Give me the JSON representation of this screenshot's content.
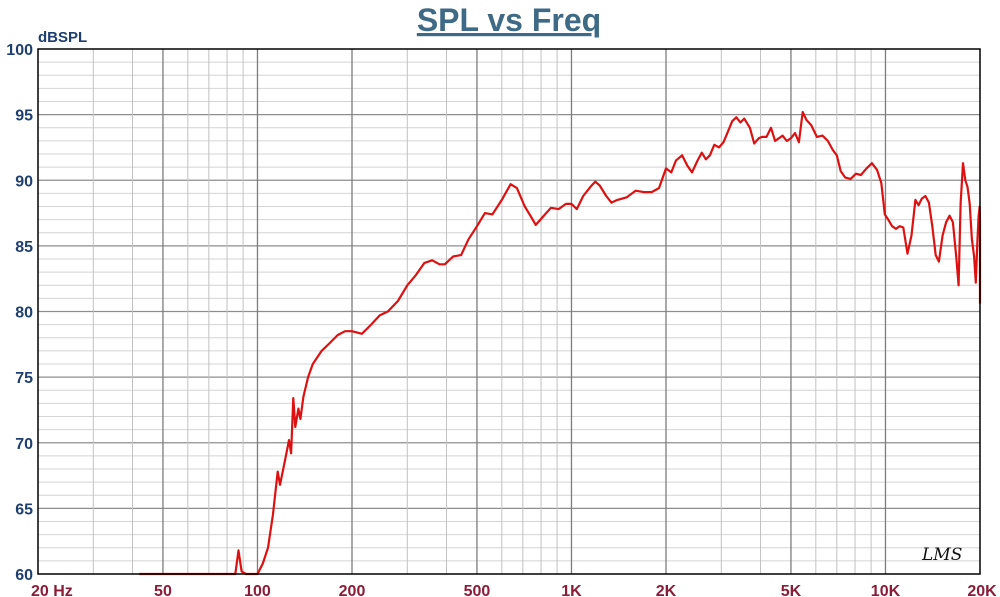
{
  "chart_data": {
    "type": "line",
    "title": "SPL vs Freq",
    "ylabel": "dBSPL",
    "xlabel": "",
    "xscale": "log",
    "xlim": [
      20,
      20000
    ],
    "ylim": [
      60,
      100
    ],
    "grid": true,
    "yticks": [
      {
        "value": 60,
        "label": "60"
      },
      {
        "value": 65,
        "label": "65"
      },
      {
        "value": 70,
        "label": "70"
      },
      {
        "value": 75,
        "label": "75"
      },
      {
        "value": 80,
        "label": "80"
      },
      {
        "value": 85,
        "label": "85"
      },
      {
        "value": 90,
        "label": "90"
      },
      {
        "value": 95,
        "label": "95"
      },
      {
        "value": 100,
        "label": "100"
      }
    ],
    "xticks": [
      {
        "value": 20,
        "label": "20  Hz"
      },
      {
        "value": 50,
        "label": "50"
      },
      {
        "value": 100,
        "label": "100"
      },
      {
        "value": 200,
        "label": "200"
      },
      {
        "value": 500,
        "label": "500"
      },
      {
        "value": 1000,
        "label": "1K"
      },
      {
        "value": 2000,
        "label": "2K"
      },
      {
        "value": 5000,
        "label": "5K"
      },
      {
        "value": 10000,
        "label": "10K"
      },
      {
        "value": 20000,
        "label": "20K"
      }
    ],
    "series": [
      {
        "color": "#dd1111",
        "points": [
          [
            42,
            60
          ],
          [
            80,
            60
          ],
          [
            85,
            60
          ],
          [
            87,
            61.8
          ],
          [
            89,
            60.2
          ],
          [
            92,
            60
          ],
          [
            100,
            60
          ],
          [
            104,
            60.8
          ],
          [
            108,
            62
          ],
          [
            112,
            64.5
          ],
          [
            116,
            67.8
          ],
          [
            118,
            66.8
          ],
          [
            122,
            68.5
          ],
          [
            126,
            70.2
          ],
          [
            128,
            69.2
          ],
          [
            130,
            73.4
          ],
          [
            132,
            71.2
          ],
          [
            135,
            72.6
          ],
          [
            137,
            71.8
          ],
          [
            140,
            73.5
          ],
          [
            145,
            75
          ],
          [
            150,
            76
          ],
          [
            160,
            77
          ],
          [
            170,
            77.6
          ],
          [
            180,
            78.2
          ],
          [
            190,
            78.5
          ],
          [
            200,
            78.5
          ],
          [
            215,
            78.3
          ],
          [
            230,
            79
          ],
          [
            245,
            79.7
          ],
          [
            260,
            80
          ],
          [
            280,
            80.8
          ],
          [
            300,
            82
          ],
          [
            320,
            82.8
          ],
          [
            340,
            83.7
          ],
          [
            360,
            83.9
          ],
          [
            380,
            83.6
          ],
          [
            395,
            83.6
          ],
          [
            420,
            84.2
          ],
          [
            445,
            84.3
          ],
          [
            470,
            85.5
          ],
          [
            500,
            86.5
          ],
          [
            530,
            87.5
          ],
          [
            560,
            87.4
          ],
          [
            600,
            88.5
          ],
          [
            640,
            89.7
          ],
          [
            670,
            89.4
          ],
          [
            710,
            88
          ],
          [
            740,
            87.3
          ],
          [
            770,
            86.6
          ],
          [
            810,
            87.2
          ],
          [
            860,
            87.9
          ],
          [
            910,
            87.8
          ],
          [
            960,
            88.2
          ],
          [
            1000,
            88.2
          ],
          [
            1040,
            87.8
          ],
          [
            1090,
            88.8
          ],
          [
            1150,
            89.5
          ],
          [
            1190,
            89.9
          ],
          [
            1230,
            89.6
          ],
          [
            1290,
            88.8
          ],
          [
            1340,
            88.3
          ],
          [
            1400,
            88.5
          ],
          [
            1500,
            88.7
          ],
          [
            1600,
            89.2
          ],
          [
            1700,
            89.1
          ],
          [
            1800,
            89.1
          ],
          [
            1900,
            89.4
          ],
          [
            2000,
            90.9
          ],
          [
            2080,
            90.6
          ],
          [
            2150,
            91.5
          ],
          [
            2250,
            91.9
          ],
          [
            2340,
            91.1
          ],
          [
            2420,
            90.6
          ],
          [
            2520,
            91.5
          ],
          [
            2600,
            92.1
          ],
          [
            2680,
            91.6
          ],
          [
            2760,
            91.9
          ],
          [
            2850,
            92.7
          ],
          [
            2950,
            92.5
          ],
          [
            3050,
            92.9
          ],
          [
            3150,
            93.7
          ],
          [
            3250,
            94.5
          ],
          [
            3350,
            94.8
          ],
          [
            3450,
            94.4
          ],
          [
            3550,
            94.7
          ],
          [
            3700,
            94
          ],
          [
            3820,
            92.8
          ],
          [
            3950,
            93.2
          ],
          [
            4050,
            93.3
          ],
          [
            4180,
            93.3
          ],
          [
            4320,
            94
          ],
          [
            4450,
            93
          ],
          [
            4580,
            93.2
          ],
          [
            4700,
            93.4
          ],
          [
            4850,
            93
          ],
          [
            5000,
            93.2
          ],
          [
            5150,
            93.6
          ],
          [
            5300,
            92.9
          ],
          [
            5450,
            95.2
          ],
          [
            5600,
            94.6
          ],
          [
            5800,
            94.2
          ],
          [
            6050,
            93.3
          ],
          [
            6300,
            93.4
          ],
          [
            6550,
            93
          ],
          [
            6800,
            92.3
          ],
          [
            7000,
            91.9
          ],
          [
            7200,
            90.7
          ],
          [
            7450,
            90.2
          ],
          [
            7750,
            90.1
          ],
          [
            8050,
            90.5
          ],
          [
            8350,
            90.4
          ],
          [
            8700,
            90.9
          ],
          [
            9050,
            91.3
          ],
          [
            9400,
            90.8
          ],
          [
            9700,
            89.8
          ],
          [
            9950,
            87.4
          ],
          [
            10200,
            87
          ],
          [
            10500,
            86.5
          ],
          [
            10800,
            86.3
          ],
          [
            11100,
            86.5
          ],
          [
            11400,
            86.4
          ],
          [
            11750,
            84.4
          ],
          [
            12100,
            85.8
          ],
          [
            12450,
            88.5
          ],
          [
            12750,
            88.1
          ],
          [
            13050,
            88.6
          ],
          [
            13400,
            88.8
          ],
          [
            13750,
            88.3
          ],
          [
            14100,
            86.5
          ],
          [
            14450,
            84.3
          ],
          [
            14800,
            83.8
          ],
          [
            15200,
            85.8
          ],
          [
            15600,
            86.8
          ],
          [
            16000,
            87.3
          ],
          [
            16400,
            86.8
          ],
          [
            16800,
            84.2
          ],
          [
            17100,
            82
          ],
          [
            17350,
            88.2
          ],
          [
            17650,
            91.3
          ],
          [
            17950,
            90
          ],
          [
            18250,
            89.5
          ],
          [
            18550,
            88.2
          ],
          [
            18850,
            85.5
          ],
          [
            19150,
            84.2
          ],
          [
            19400,
            82.2
          ],
          [
            19600,
            85
          ],
          [
            19800,
            87.3
          ],
          [
            19950,
            88
          ],
          [
            20050,
            86.8
          ],
          [
            20150,
            85
          ],
          [
            20250,
            83.5
          ],
          [
            20350,
            81.5
          ],
          [
            20450,
            80.6
          ]
        ]
      }
    ]
  },
  "logo_text": "LMS"
}
